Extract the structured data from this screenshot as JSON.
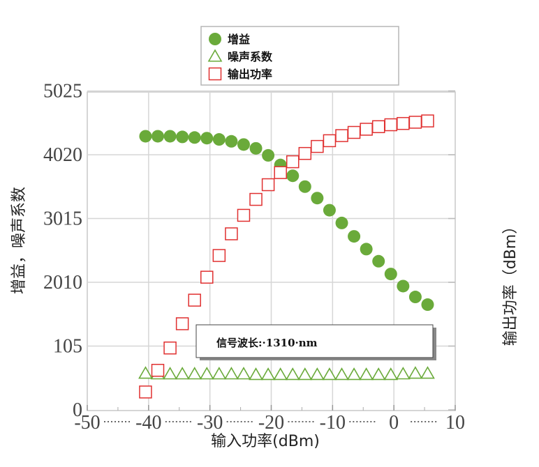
{
  "chart_data": {
    "type": "scatter",
    "x_ticks": [
      "-50",
      "-40",
      "-30",
      "-20",
      "-10",
      "0",
      "10"
    ],
    "y_ticks": [
      "0",
      "105",
      "2010",
      "3015",
      "4020",
      "5025"
    ],
    "xlim": [
      -50,
      10
    ],
    "ylim_ticks": [
      0,
      5
    ],
    "xlabel": "输入功率(dBm)",
    "ylabel_left": "增益，噪声系数",
    "ylabel_right": "输出功率（dBm）",
    "annotation": "信号波长:·1310·nm",
    "legend": [
      {
        "name": "增益",
        "marker": "circle",
        "color": "#6aaa3a"
      },
      {
        "name": "噪声系数",
        "marker": "triangle",
        "color": "#6aaa3a"
      },
      {
        "name": "输出功率",
        "marker": "square",
        "color": "#e03030"
      }
    ],
    "series": [
      {
        "name": "增益",
        "marker": "circle",
        "color": "#6aaa3a",
        "x": [
          -40.5,
          -38.5,
          -36.5,
          -34.5,
          -32.5,
          -30.5,
          -28.5,
          -26.5,
          -24.5,
          -22.5,
          -20.5,
          -18.5,
          -16.5,
          -14.5,
          -12.5,
          -10.5,
          -8.5,
          -6.5,
          -4.5,
          -2.5,
          -0.5,
          1.5,
          3.5,
          5.5
        ],
        "y": [
          4.29,
          4.29,
          4.29,
          4.28,
          4.27,
          4.26,
          4.24,
          4.21,
          4.16,
          4.1,
          3.99,
          3.84,
          3.67,
          3.5,
          3.32,
          3.13,
          2.93,
          2.72,
          2.52,
          2.33,
          2.13,
          1.94,
          1.77,
          1.65
        ]
      },
      {
        "name": "噪声系数",
        "marker": "triangle",
        "color": "#6aaa3a",
        "x": [
          -40.5,
          -38.5,
          -36.5,
          -34.5,
          -32.5,
          -30.5,
          -28.5,
          -26.5,
          -24.5,
          -22.5,
          -20.5,
          -18.5,
          -16.5,
          -14.5,
          -12.5,
          -10.5,
          -8.5,
          -6.5,
          -4.5,
          -2.5,
          -0.5,
          1.5,
          3.5,
          5.5
        ],
        "y": [
          0.57,
          0.56,
          0.56,
          0.56,
          0.56,
          0.56,
          0.56,
          0.56,
          0.56,
          0.55,
          0.55,
          0.55,
          0.55,
          0.55,
          0.55,
          0.55,
          0.55,
          0.55,
          0.55,
          0.55,
          0.55,
          0.56,
          0.57,
          0.57
        ]
      },
      {
        "name": "输出功率",
        "marker": "square",
        "color": "#e03030",
        "x": [
          -40.5,
          -38.5,
          -36.5,
          -34.5,
          -32.5,
          -30.5,
          -28.5,
          -26.5,
          -24.5,
          -22.5,
          -20.5,
          -18.5,
          -16.5,
          -14.5,
          -12.5,
          -10.5,
          -8.5,
          -6.5,
          -4.5,
          -2.5,
          -0.5,
          1.5,
          3.5,
          5.5
        ],
        "y": [
          0.28,
          0.62,
          0.97,
          1.35,
          1.72,
          2.08,
          2.42,
          2.76,
          3.05,
          3.3,
          3.53,
          3.72,
          3.89,
          4.02,
          4.13,
          4.22,
          4.3,
          4.35,
          4.4,
          4.44,
          4.47,
          4.49,
          4.51,
          4.53
        ]
      }
    ]
  }
}
